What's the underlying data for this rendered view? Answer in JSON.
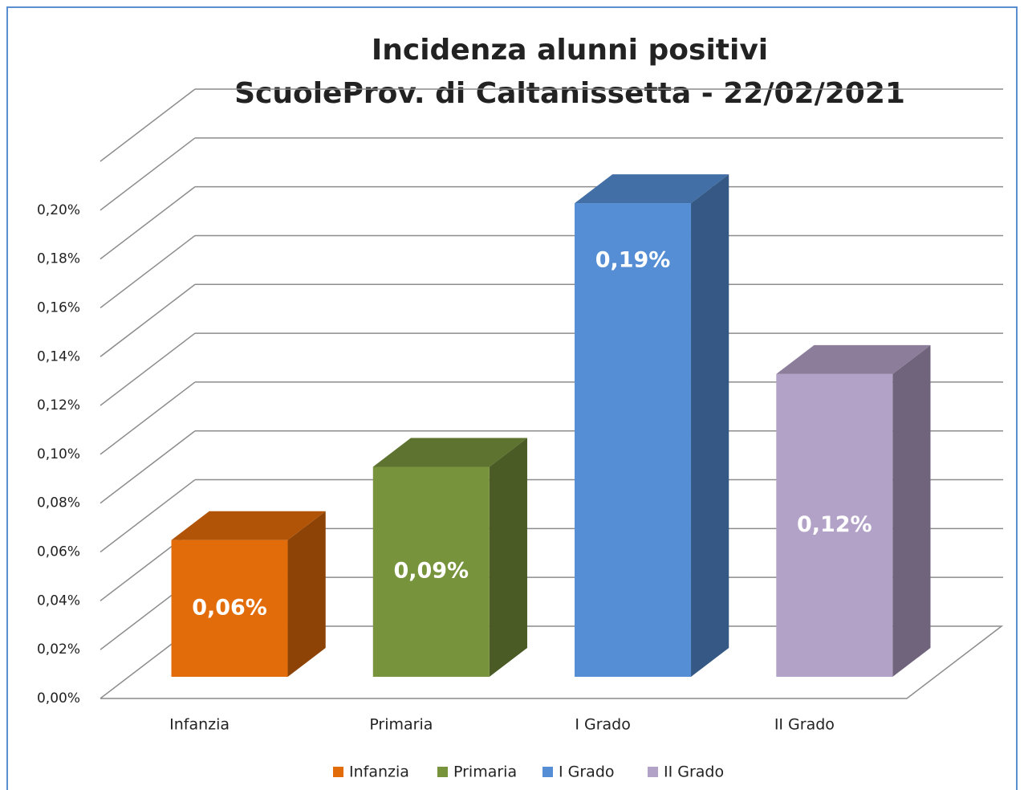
{
  "chart_data": {
    "type": "bar3d",
    "title": "Incidenza alunni positivi",
    "subtitle": "ScuoleProv. di Caltanissetta - 22/02/2021",
    "categories": [
      "Infanzia",
      "Primaria",
      "I Grado",
      "II Grado"
    ],
    "values": [
      0.056,
      0.086,
      0.194,
      0.124
    ],
    "value_labels": [
      "0,06%",
      "0,09%",
      "0,19%",
      "0,12%"
    ],
    "colors": [
      "#e36c0a",
      "#77933c",
      "#558ed5",
      "#b3a2c7"
    ],
    "ylim": [
      0,
      0.22
    ],
    "yticks": [
      {
        "value": 0,
        "label": "0,00%"
      },
      {
        "value": 0.02,
        "label": "0,02%"
      },
      {
        "value": 0.04,
        "label": "0,04%"
      },
      {
        "value": 0.06,
        "label": "0,06%"
      },
      {
        "value": 0.08,
        "label": "0,08%"
      },
      {
        "value": 0.1,
        "label": "0,10%"
      },
      {
        "value": 0.12,
        "label": "0,12%"
      },
      {
        "value": 0.14,
        "label": "0,14%"
      },
      {
        "value": 0.16,
        "label": "0,16%"
      },
      {
        "value": 0.18,
        "label": "0,18%"
      },
      {
        "value": 0.2,
        "label": "0,20%"
      }
    ],
    "grid": true,
    "legend": "bottom"
  }
}
